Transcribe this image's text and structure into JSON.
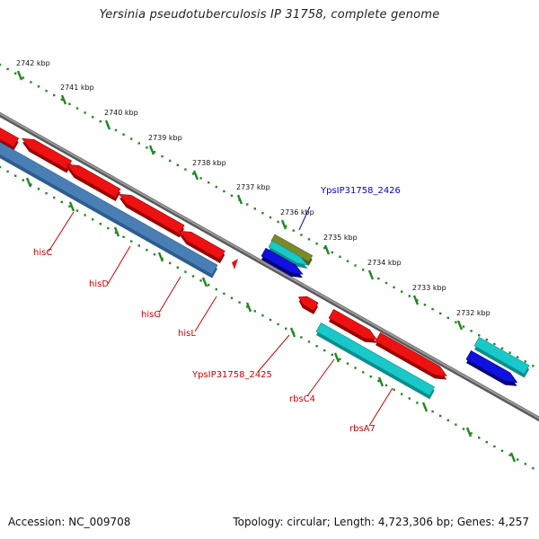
{
  "title": "Yersinia pseudotuberculosis IP 31758, complete genome",
  "footer": {
    "accession": "Accession: NC_009708",
    "summary": "Topology: circular; Length: 4,723,306 bp; Genes: 4,257"
  },
  "colors": {
    "backbone": "#777777",
    "ticks": "#228822",
    "red_gene": "#ee1111",
    "steelblue_gene": "#4a7fb5",
    "cyan_gene": "#19c8c8",
    "blue_gene": "#1010e0",
    "olive_gene": "#7a8a28",
    "label_red": "#cc0000",
    "label_blue": "#0000cc"
  },
  "tick_labels": [
    "2742 kbp",
    "2741 kbp",
    "2740 kbp",
    "2739 kbp",
    "2738 kbp",
    "2737 kbp",
    "2736 kbp",
    "2735 kbp",
    "2734 kbp",
    "2733 kbp",
    "2732 kbp"
  ],
  "gene_labels": [
    {
      "id": "hisC",
      "text": "hisC",
      "color": "red"
    },
    {
      "id": "hisD",
      "text": "hisD",
      "color": "red"
    },
    {
      "id": "hisG",
      "text": "hisG",
      "color": "red"
    },
    {
      "id": "hisL",
      "text": "hisL",
      "color": "red"
    },
    {
      "id": "YpsIP31758_2425",
      "text": "YpsIP31758_2425",
      "color": "red"
    },
    {
      "id": "rbsC4",
      "text": "rbsC4",
      "color": "red"
    },
    {
      "id": "rbsA7",
      "text": "rbsA7",
      "color": "red"
    },
    {
      "id": "YpsIP31758_2426",
      "text": "YpsIP31758_2426",
      "color": "blue"
    }
  ]
}
